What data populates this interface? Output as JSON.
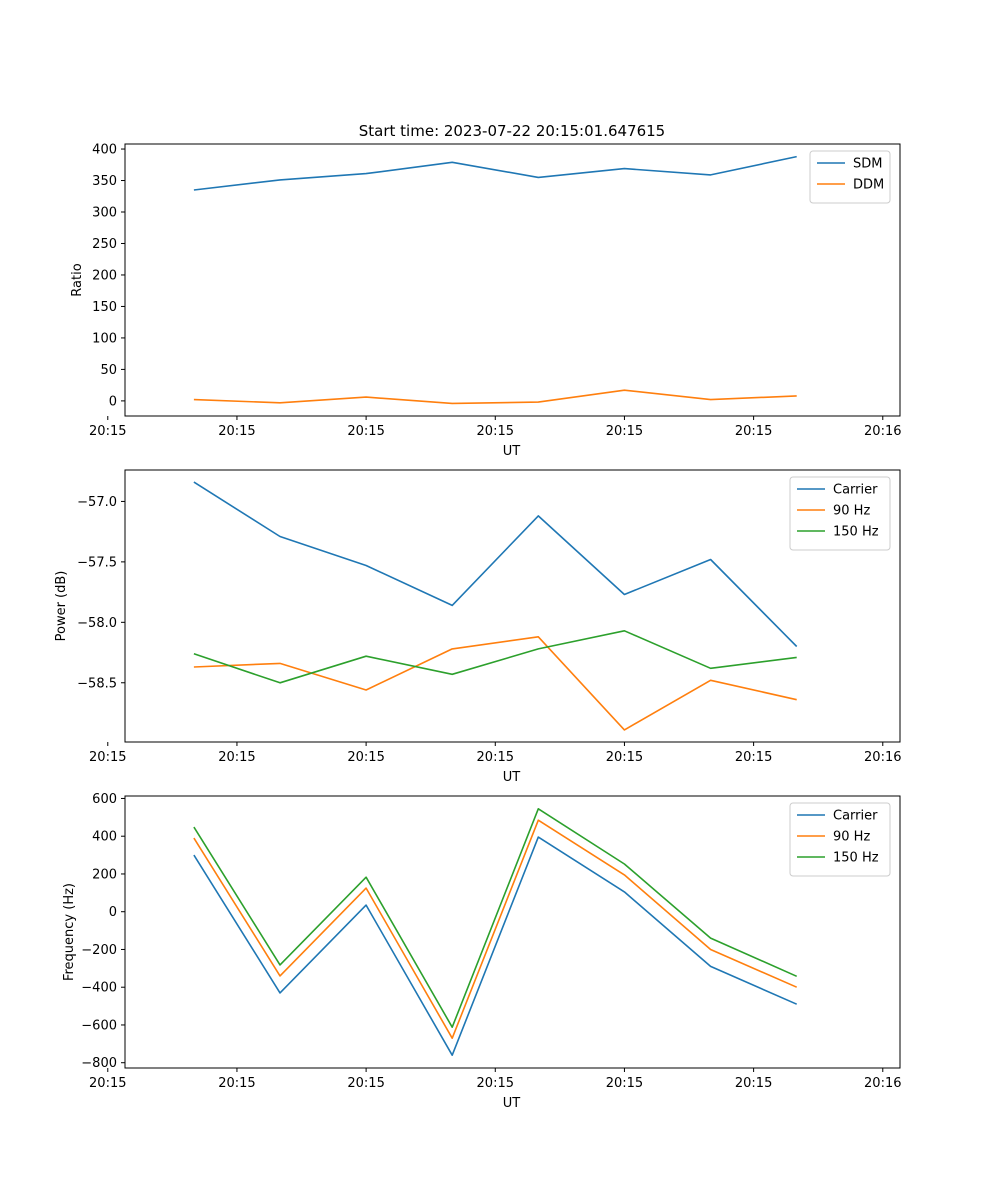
{
  "figure": {
    "title": "Start time: 2023-07-22 20:15:01.647615"
  },
  "colors": {
    "blue": "#1f77b4",
    "orange": "#ff7f0e",
    "green": "#2ca02c"
  },
  "chart_data": [
    {
      "id": "ratio",
      "type": "line",
      "xlabel": "UT",
      "ylabel": "Ratio",
      "x": [
        1,
        2,
        3,
        4,
        5,
        6,
        7,
        8
      ],
      "xlim": [
        0.2,
        9.2
      ],
      "xticks": [
        0,
        1.5,
        3,
        4.5,
        6,
        7.5,
        9
      ],
      "xtick_labels": [
        "20:15",
        "20:15",
        "20:15",
        "20:15",
        "20:15",
        "20:15",
        "20:16"
      ],
      "ylim": [
        -24,
        408
      ],
      "yticks": [
        0,
        50,
        100,
        150,
        200,
        250,
        300,
        350,
        400
      ],
      "ytick_labels": [
        "0",
        "50",
        "100",
        "150",
        "200",
        "250",
        "300",
        "350",
        "400"
      ],
      "legend": "top-right",
      "series": [
        {
          "name": "SDM",
          "color": "#1f77b4",
          "values": [
            335,
            351,
            361,
            379,
            355,
            369,
            359,
            388
          ]
        },
        {
          "name": "DDM",
          "color": "#ff7f0e",
          "values": [
            2,
            -3,
            6,
            -4,
            -2,
            17,
            2,
            8
          ]
        }
      ]
    },
    {
      "id": "power",
      "type": "line",
      "xlabel": "UT",
      "ylabel": "Power (dB)",
      "x": [
        1,
        2,
        3,
        4,
        5,
        6,
        7,
        8
      ],
      "xlim": [
        0.2,
        9.2
      ],
      "xticks": [
        0,
        1.5,
        3,
        4.5,
        6,
        7.5,
        9
      ],
      "xtick_labels": [
        "20:15",
        "20:15",
        "20:15",
        "20:15",
        "20:15",
        "20:15",
        "20:16"
      ],
      "ylim": [
        -58.99,
        -56.74
      ],
      "yticks": [
        -58.5,
        -58.0,
        -57.5,
        -57.0
      ],
      "ytick_labels": [
        "−58.5",
        "−58.0",
        "−57.5",
        "−57.0"
      ],
      "legend": "top-right",
      "series": [
        {
          "name": "Carrier",
          "color": "#1f77b4",
          "values": [
            -56.84,
            -57.29,
            -57.53,
            -57.86,
            -57.12,
            -57.77,
            -57.48,
            -58.2
          ]
        },
        {
          "name": "90 Hz",
          "color": "#ff7f0e",
          "values": [
            -58.37,
            -58.34,
            -58.56,
            -58.22,
            -58.12,
            -58.89,
            -58.48,
            -58.64
          ]
        },
        {
          "name": "150 Hz",
          "color": "#2ca02c",
          "values": [
            -58.26,
            -58.5,
            -58.28,
            -58.43,
            -58.22,
            -58.07,
            -58.38,
            -58.29
          ]
        }
      ]
    },
    {
      "id": "frequency",
      "type": "line",
      "xlabel": "UT",
      "ylabel": "Frequency (Hz)",
      "x": [
        1,
        2,
        3,
        4,
        5,
        6,
        7,
        8
      ],
      "xlim": [
        0.2,
        9.2
      ],
      "xticks": [
        0,
        1.5,
        3,
        4.5,
        6,
        7.5,
        9
      ],
      "xtick_labels": [
        "20:15",
        "20:15",
        "20:15",
        "20:15",
        "20:15",
        "20:15",
        "20:16"
      ],
      "ylim": [
        -828,
        613
      ],
      "yticks": [
        -800,
        -600,
        -400,
        -200,
        0,
        200,
        400,
        600
      ],
      "ytick_labels": [
        "−800",
        "−600",
        "−400",
        "−200",
        "0",
        "200",
        "400",
        "600"
      ],
      "legend": "top-right",
      "series": [
        {
          "name": "Carrier",
          "color": "#1f77b4",
          "values": [
            300,
            -430,
            35,
            -760,
            395,
            105,
            -290,
            -490
          ]
        },
        {
          "name": "90 Hz",
          "color": "#ff7f0e",
          "values": [
            390,
            -340,
            125,
            -670,
            485,
            195,
            -200,
            -400
          ]
        },
        {
          "name": "150 Hz",
          "color": "#2ca02c",
          "values": [
            448,
            -282,
            183,
            -612,
            545,
            253,
            -140,
            -342
          ]
        }
      ]
    }
  ]
}
